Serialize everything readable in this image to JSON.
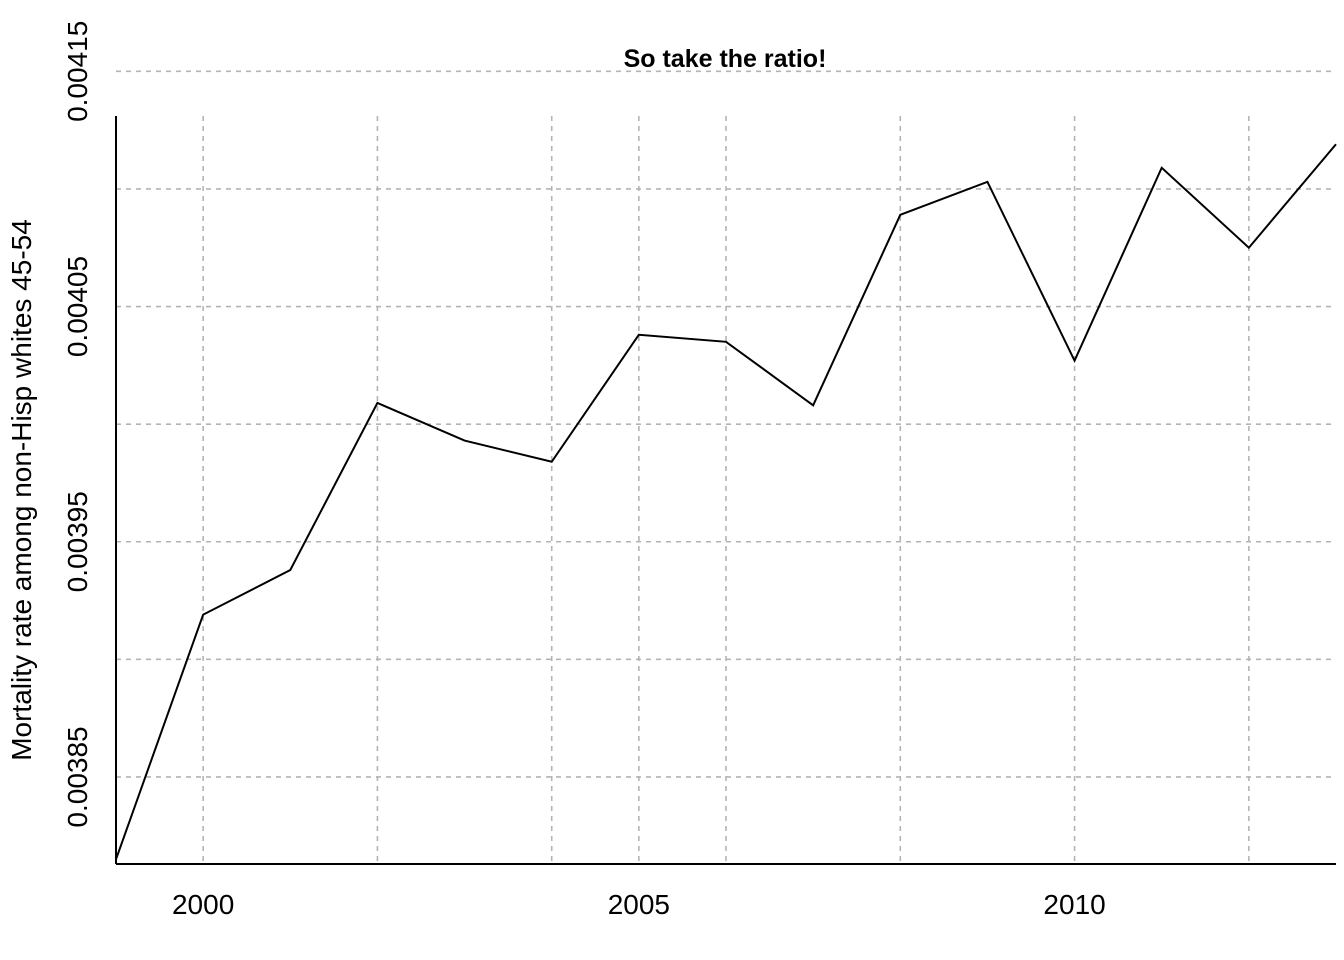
{
  "chart_data": {
    "type": "line",
    "title": "So take the ratio!",
    "xlabel": "",
    "ylabel": "Mortality rate among non-Hisp whites 45-54",
    "x": [
      1999,
      2000,
      2001,
      2002,
      2003,
      2004,
      2005,
      2006,
      2007,
      2008,
      2009,
      2010,
      2011,
      2012,
      2013
    ],
    "series": [
      {
        "values": [
          0.003815,
          0.003919,
          0.003938,
          0.004009,
          0.003993,
          0.003984,
          0.004038,
          0.004035,
          0.004008,
          0.004089,
          0.004103,
          0.004027,
          0.004109,
          0.004075,
          0.004119
        ]
      }
    ],
    "xlim": [
      1999,
      2013
    ],
    "ylim": [
      0.003813,
      0.004131
    ],
    "x_ticks": [
      2000,
      2005,
      2010
    ],
    "x_tick_labels": [
      "2000",
      "2005",
      "2010"
    ],
    "x_grid": [
      2000,
      2002,
      2004,
      2005,
      2006,
      2008,
      2010,
      2012
    ],
    "y_ticks": [
      0.00385,
      0.00395,
      0.00405,
      0.00415
    ],
    "y_tick_labels": [
      "0.00385",
      "0.00395",
      "0.00405",
      "0.00415"
    ],
    "y_grid": [
      0.00385,
      0.0039,
      0.00395,
      0.004,
      0.00405,
      0.0041,
      0.00415
    ],
    "grid": true,
    "grid_color": "#b4b4b4",
    "line_color": "#000000"
  }
}
